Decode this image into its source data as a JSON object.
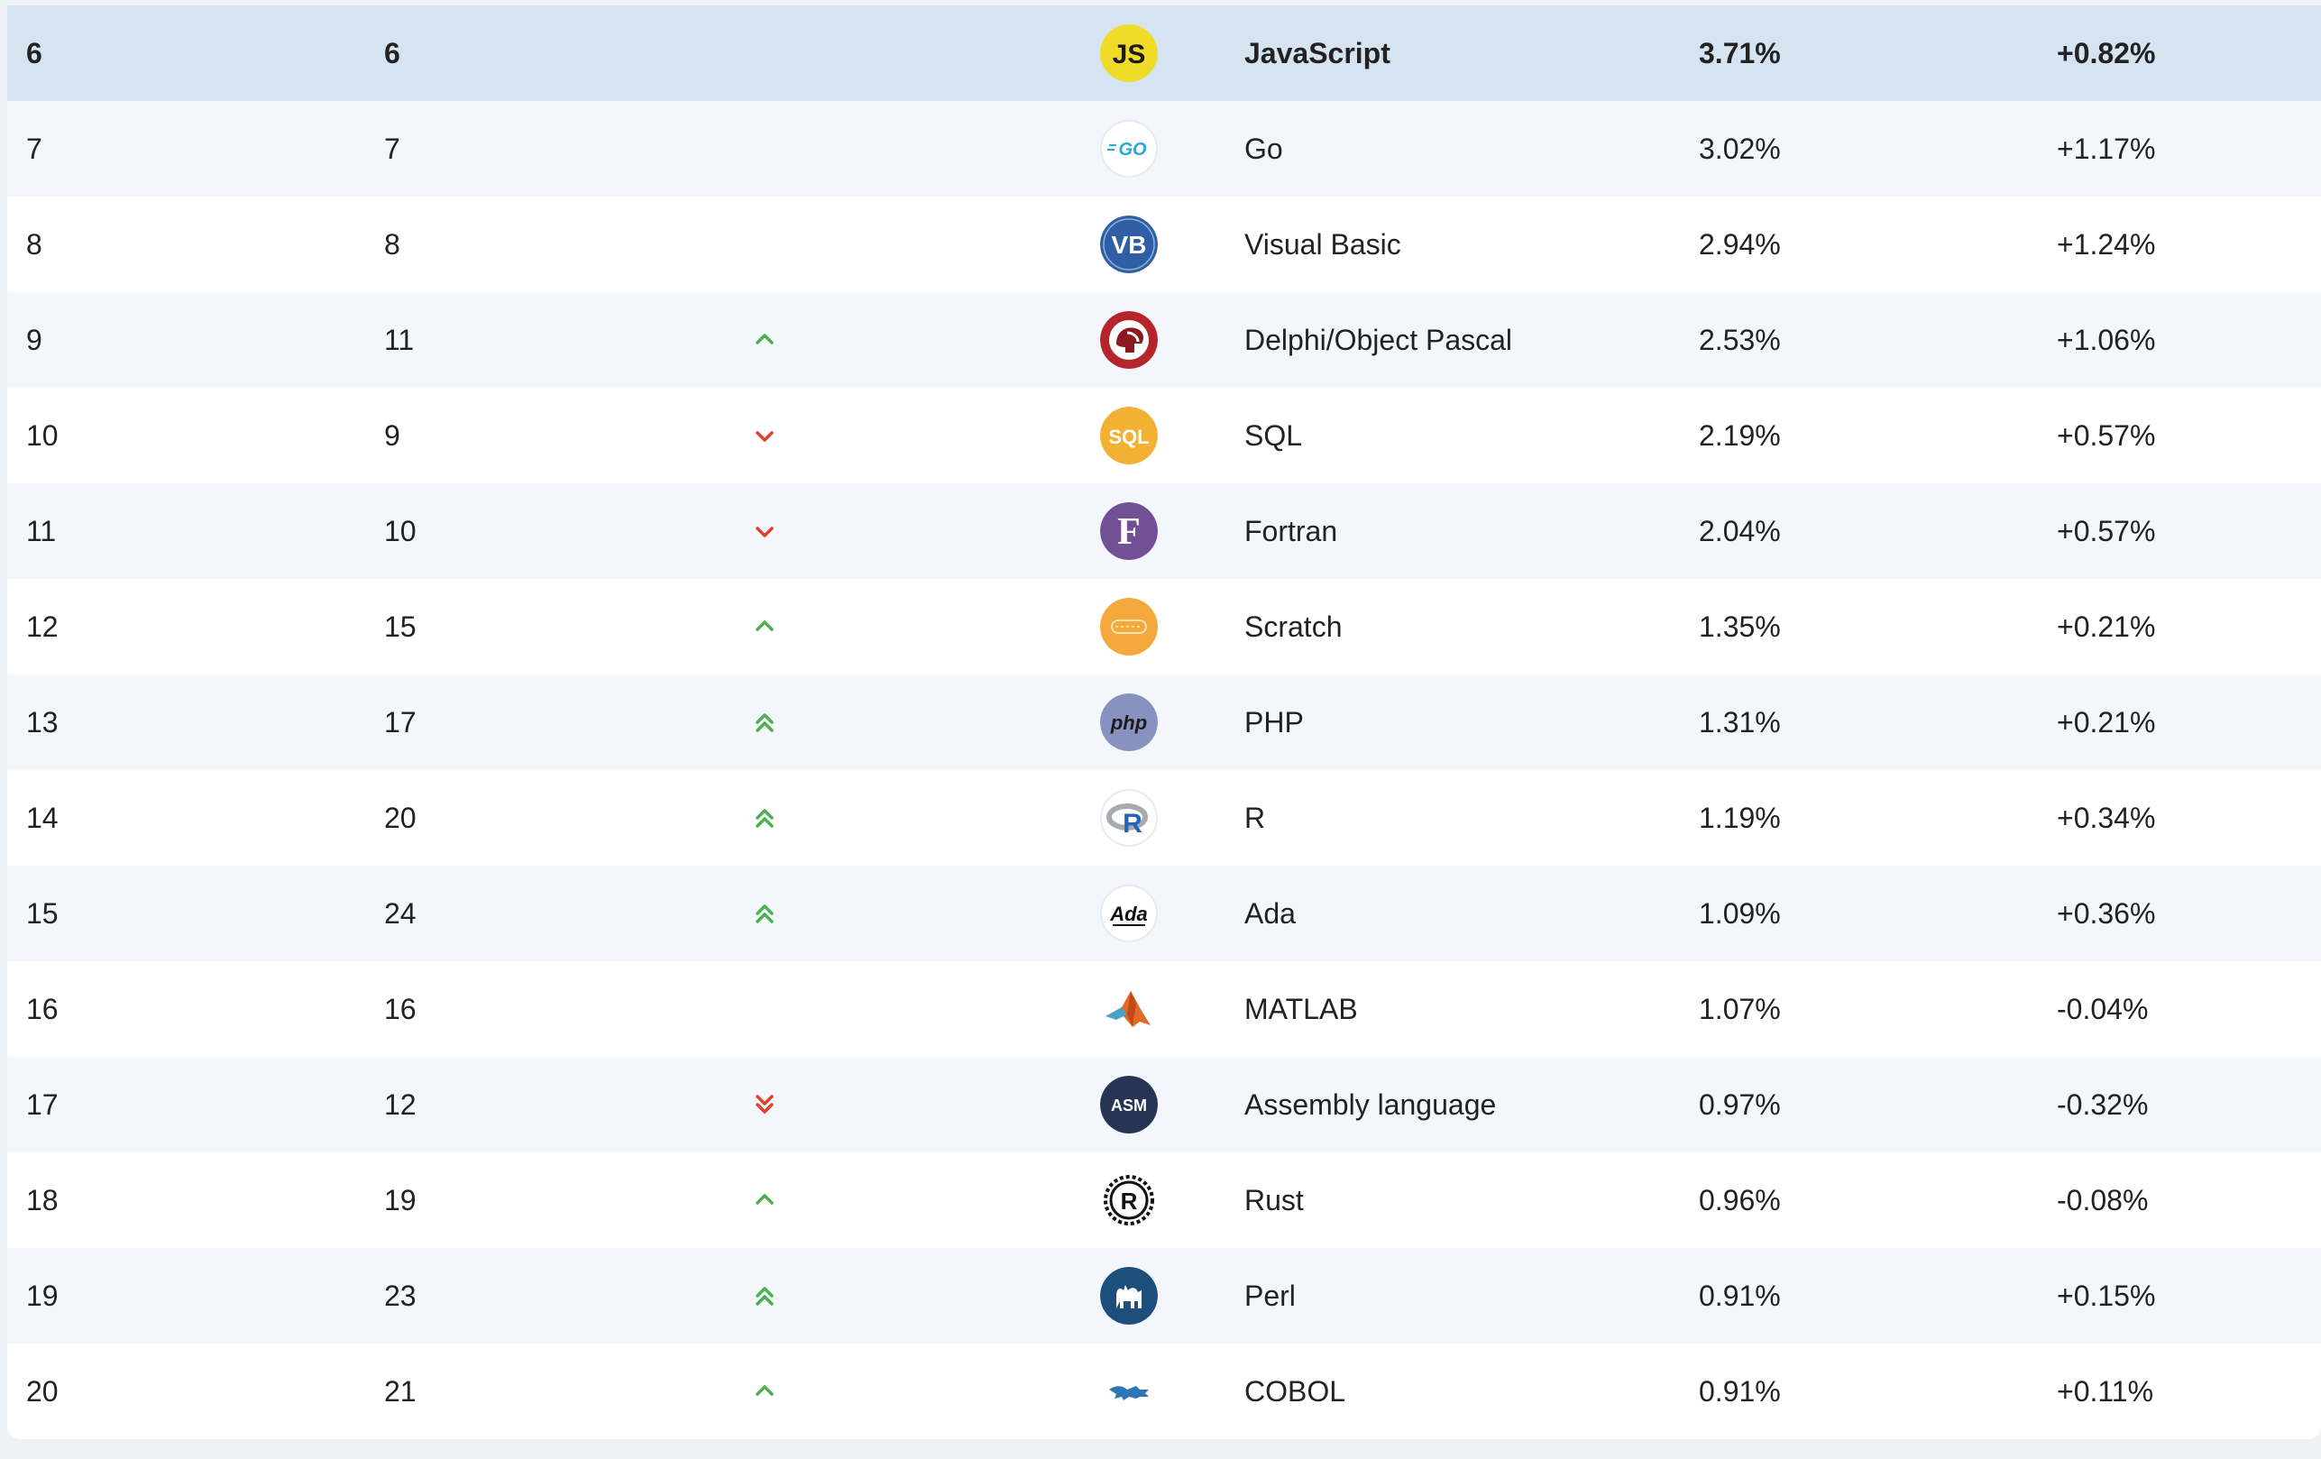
{
  "colors": {
    "up": "#4caf50",
    "down": "#e0432a",
    "highlight_row": "#d6e3f1",
    "alt_row": "#f3f6fa"
  },
  "rows": [
    {
      "rank": "6",
      "prev": "6",
      "change": "none",
      "logo": "javascript-logo",
      "name": "JavaScript",
      "rating": "3.71%",
      "delta": "+0.82%"
    },
    {
      "rank": "7",
      "prev": "7",
      "change": "none",
      "logo": "go-logo",
      "name": "Go",
      "rating": "3.02%",
      "delta": "+1.17%"
    },
    {
      "rank": "8",
      "prev": "8",
      "change": "none",
      "logo": "visual-basic-logo",
      "name": "Visual Basic",
      "rating": "2.94%",
      "delta": "+1.24%"
    },
    {
      "rank": "9",
      "prev": "11",
      "change": "up",
      "logo": "delphi-logo",
      "name": "Delphi/Object Pascal",
      "rating": "2.53%",
      "delta": "+1.06%"
    },
    {
      "rank": "10",
      "prev": "9",
      "change": "down",
      "logo": "sql-logo",
      "name": "SQL",
      "rating": "2.19%",
      "delta": "+0.57%"
    },
    {
      "rank": "11",
      "prev": "10",
      "change": "down",
      "logo": "fortran-logo",
      "name": "Fortran",
      "rating": "2.04%",
      "delta": "+0.57%"
    },
    {
      "rank": "12",
      "prev": "15",
      "change": "up",
      "logo": "scratch-logo",
      "name": "Scratch",
      "rating": "1.35%",
      "delta": "+0.21%"
    },
    {
      "rank": "13",
      "prev": "17",
      "change": "up-double",
      "logo": "php-logo",
      "name": "PHP",
      "rating": "1.31%",
      "delta": "+0.21%"
    },
    {
      "rank": "14",
      "prev": "20",
      "change": "up-double",
      "logo": "r-logo",
      "name": "R",
      "rating": "1.19%",
      "delta": "+0.34%"
    },
    {
      "rank": "15",
      "prev": "24",
      "change": "up-double",
      "logo": "ada-logo",
      "name": "Ada",
      "rating": "1.09%",
      "delta": "+0.36%"
    },
    {
      "rank": "16",
      "prev": "16",
      "change": "none",
      "logo": "matlab-logo",
      "name": "MATLAB",
      "rating": "1.07%",
      "delta": "-0.04%"
    },
    {
      "rank": "17",
      "prev": "12",
      "change": "down-double",
      "logo": "assembly-logo",
      "name": "Assembly language",
      "rating": "0.97%",
      "delta": "-0.32%"
    },
    {
      "rank": "18",
      "prev": "19",
      "change": "up",
      "logo": "rust-logo",
      "name": "Rust",
      "rating": "0.96%",
      "delta": "-0.08%"
    },
    {
      "rank": "19",
      "prev": "23",
      "change": "up-double",
      "logo": "perl-logo",
      "name": "Perl",
      "rating": "0.91%",
      "delta": "+0.15%"
    },
    {
      "rank": "20",
      "prev": "21",
      "change": "up",
      "logo": "cobol-logo",
      "name": "COBOL",
      "rating": "0.91%",
      "delta": "+0.11%"
    }
  ],
  "logo_text": {
    "javascript-logo": "JS",
    "go-logo": "GO",
    "visual-basic-logo": "VB",
    "sql-logo": "SQL",
    "fortran-logo": "F",
    "php-logo": "php",
    "r-logo": "R",
    "ada-logo": "Ada",
    "assembly-logo": "ASM",
    "rust-logo": "R"
  }
}
